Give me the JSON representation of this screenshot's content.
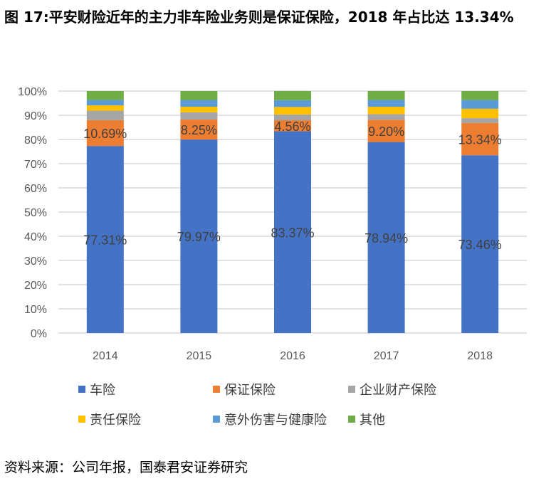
{
  "title": "图 17:平安财险近年的主力非车险业务则是保证保险，2018 年占比达 13.34%",
  "source": "资料来源：公司年报，国泰君安证券研究",
  "chart_data": {
    "type": "bar",
    "stacked": true,
    "categories": [
      "2014",
      "2015",
      "2016",
      "2017",
      "2018"
    ],
    "ylim": [
      0,
      100
    ],
    "yticks": [
      "0%",
      "10%",
      "20%",
      "30%",
      "40%",
      "50%",
      "60%",
      "70%",
      "80%",
      "90%",
      "100%"
    ],
    "grid": true,
    "legend_position": "bottom",
    "series": [
      {
        "name": "车险",
        "color": "#4472C4",
        "values": [
          77.31,
          79.97,
          83.37,
          78.94,
          73.46
        ],
        "labels": [
          "77.31%",
          "79.97%",
          "83.37%",
          "78.94%",
          "73.46%"
        ]
      },
      {
        "name": "保证保险",
        "color": "#ED7D31",
        "values": [
          10.69,
          8.25,
          4.56,
          9.2,
          13.34
        ],
        "labels": [
          "10.69%",
          "8.25%",
          "4.56%",
          "9.20%",
          "13.34%"
        ]
      },
      {
        "name": "企业财产保险",
        "color": "#A5A5A5",
        "values": [
          3.9,
          3.0,
          2.4,
          2.3,
          2.0
        ]
      },
      {
        "name": "责任保险",
        "color": "#FFC000",
        "values": [
          2.2,
          2.3,
          3.1,
          3.1,
          3.9
        ]
      },
      {
        "name": "意外伤害与健康险",
        "color": "#5B9BD5",
        "values": [
          2.2,
          2.8,
          2.8,
          2.8,
          3.6
        ]
      },
      {
        "name": "其他",
        "color": "#70AD47",
        "values": [
          3.7,
          3.7,
          3.8,
          3.7,
          3.7
        ]
      }
    ]
  }
}
